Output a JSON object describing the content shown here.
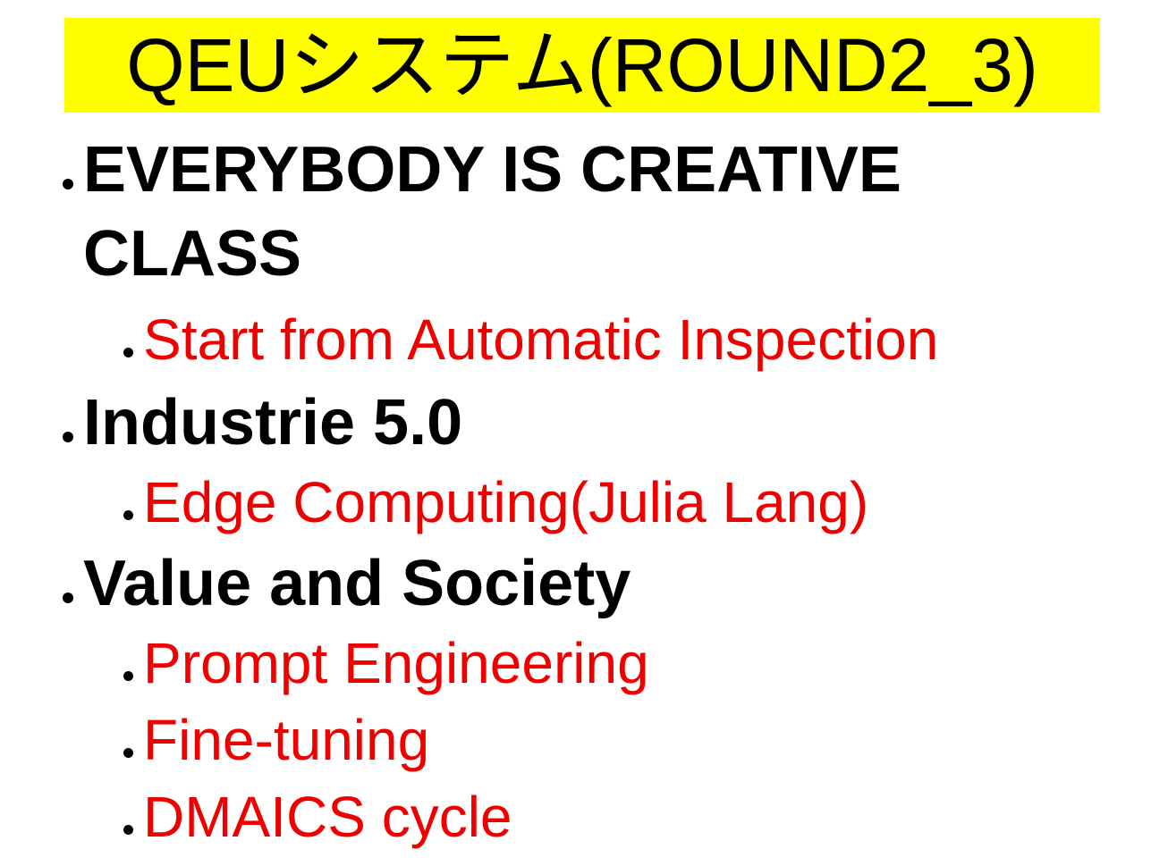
{
  "title": "QEUシステム(ROUND2_3)",
  "colors": {
    "title_background": "#ffff00",
    "level1_text": "#000000",
    "level2_text": "#ee0000"
  },
  "bullets": [
    {
      "line1": "EVERYBODY IS CREATIVE",
      "line2": "CLASS",
      "children": [
        "Start from Automatic Inspection"
      ]
    },
    {
      "line1": "Industrie 5.0",
      "children": [
        "Edge Computing(Julia Lang)"
      ]
    },
    {
      "line1": "Value and Society",
      "children": [
        "Prompt Engineering",
        "Fine-tuning",
        "DMAICS cycle"
      ]
    }
  ]
}
